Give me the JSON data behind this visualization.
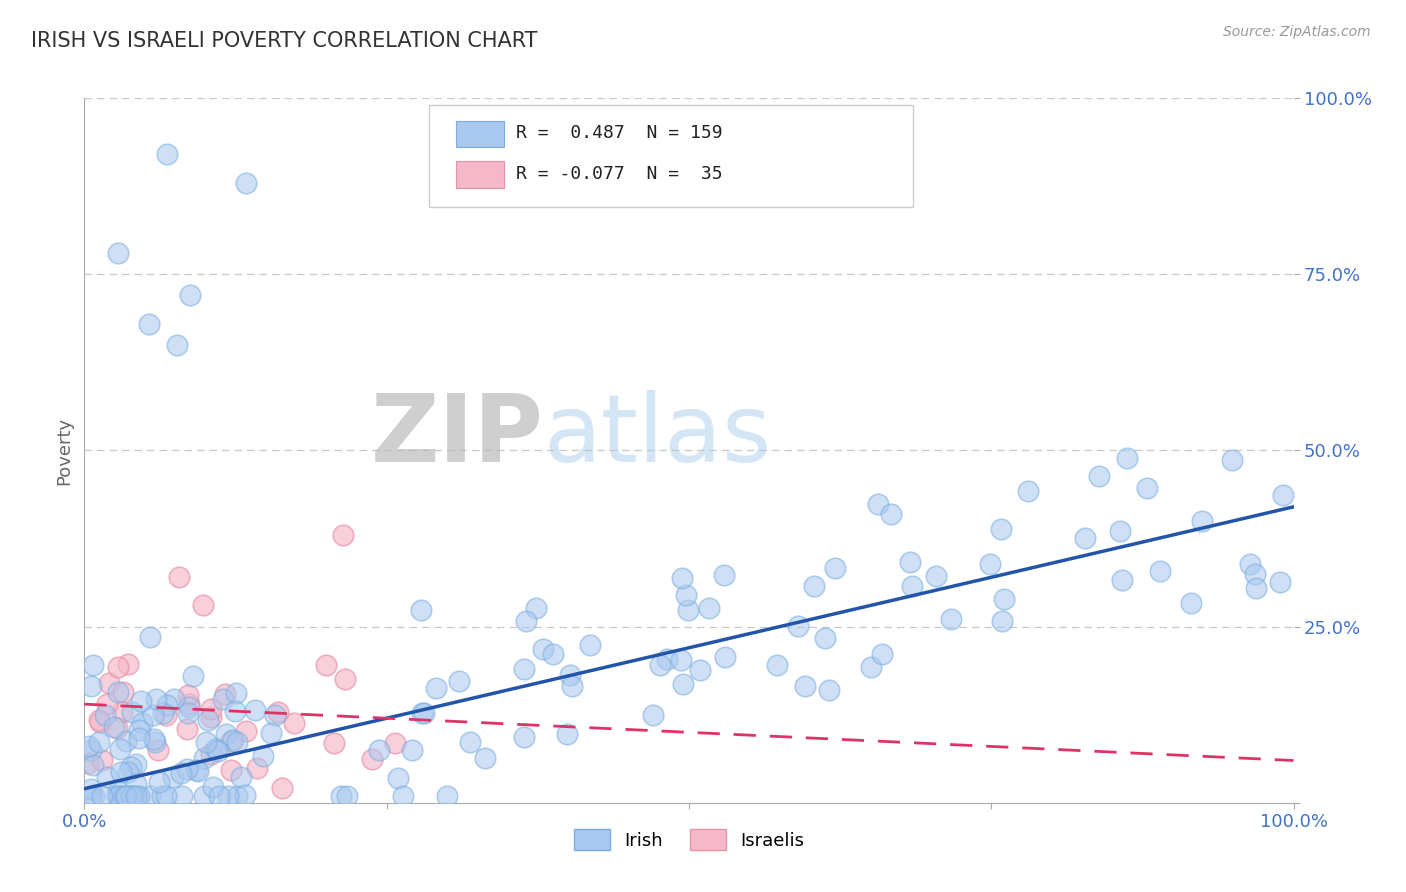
{
  "title": "IRISH VS ISRAELI POVERTY CORRELATION CHART",
  "source": "Source: ZipAtlas.com",
  "ylabel": "Poverty",
  "xlim": [
    0.0,
    1.0
  ],
  "ylim": [
    0.0,
    1.0
  ],
  "yticks": [
    0.0,
    0.25,
    0.5,
    0.75,
    1.0
  ],
  "ytick_labels": [
    "",
    "25.0%",
    "50.0%",
    "75.0%",
    "100.0%"
  ],
  "xtick_labels": [
    "0.0%",
    "",
    "",
    "",
    "100.0%"
  ],
  "irish_R": 0.487,
  "irish_N": 159,
  "israeli_R": -0.077,
  "israeli_N": 35,
  "irish_color": "#a8c8f0",
  "irish_edge_color": "#7aaee0",
  "israeli_color": "#f5b8c8",
  "israeli_edge_color": "#e890a8",
  "irish_line_color": "#2255aa",
  "israeli_line_color": "#dd3366",
  "background_color": "#ffffff",
  "grid_color": "#c8c8c8",
  "title_color": "#333333",
  "watermark_ZIP": "ZIP",
  "watermark_atlas": "atlas",
  "source_color": "#999999",
  "tick_label_color": "#4472c4",
  "ylabel_color": "#666666"
}
